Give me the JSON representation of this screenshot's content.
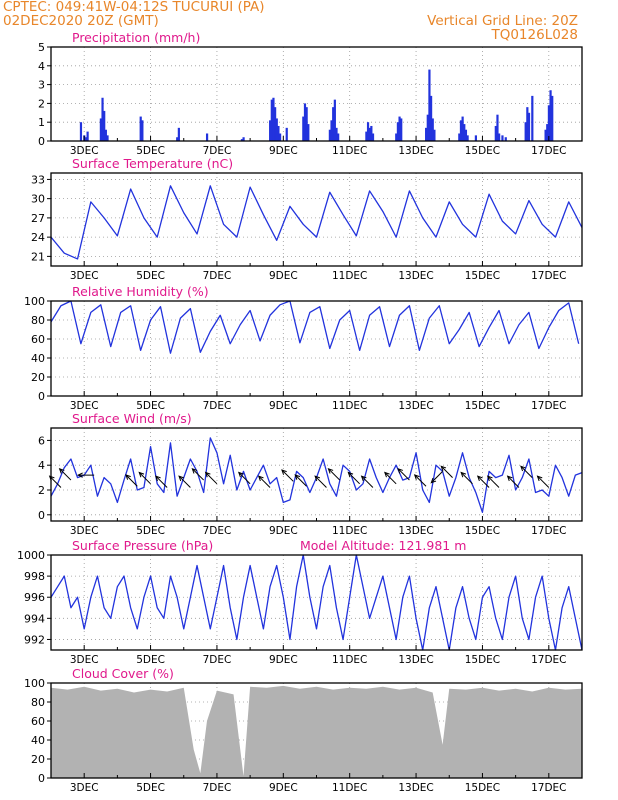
{
  "header": {
    "line1": "CPTEC:    049:41W-04:12S   TUCURUI (PA)",
    "line2": "02DEC2020 20Z (GMT)",
    "grid_note": "Vertical Grid Line: 20Z",
    "run_id": "TQ0126L028"
  },
  "colors": {
    "header": "#e8862a",
    "title": "#e0198c",
    "series": "#2233dd",
    "cloud": "#b2b2b2",
    "arrow": "#000000",
    "grid": "#9a9a9a"
  },
  "x_axis": {
    "days": [
      "3DEC",
      "5DEC",
      "7DEC",
      "9DEC",
      "11DEC",
      "13DEC",
      "15DEC",
      "17DEC"
    ]
  },
  "chart_data": [
    {
      "type": "bar",
      "title": "Precipitation (mm/h)",
      "ylim": [
        0,
        5
      ],
      "yticks": [
        "0",
        "1",
        "2",
        "3",
        "4",
        "5"
      ],
      "x_unit": "day of December 2020",
      "x": [
        2.9,
        3.0,
        3.05,
        3.1,
        3.5,
        3.55,
        3.6,
        3.65,
        3.7,
        4.7,
        4.75,
        5.8,
        5.85,
        6.7,
        7.75,
        7.8,
        8.6,
        8.65,
        8.7,
        8.75,
        8.8,
        8.85,
        8.9,
        9.1,
        9.6,
        9.65,
        9.7,
        9.75,
        10.4,
        10.45,
        10.5,
        10.55,
        10.6,
        10.65,
        11.5,
        11.55,
        11.6,
        11.65,
        11.7,
        12.4,
        12.45,
        12.5,
        12.55,
        13.3,
        13.35,
        13.4,
        13.45,
        13.5,
        13.55,
        14.3,
        14.35,
        14.4,
        14.45,
        14.5,
        14.55,
        14.8,
        15.4,
        15.45,
        15.5,
        15.6,
        15.7,
        16.3,
        16.35,
        16.4,
        16.5,
        16.9,
        16.95,
        17.0,
        17.05,
        17.1
      ],
      "values": [
        1.0,
        0.3,
        0.2,
        0.5,
        1.2,
        2.3,
        1.6,
        0.6,
        0.3,
        1.3,
        1.1,
        0.2,
        0.7,
        0.4,
        0.1,
        0.2,
        1.1,
        2.2,
        2.3,
        1.8,
        1.2,
        0.8,
        0.4,
        0.7,
        1.3,
        2.0,
        1.8,
        0.9,
        0.6,
        1.1,
        1.8,
        2.2,
        0.7,
        0.4,
        0.5,
        1.0,
        0.7,
        0.8,
        0.4,
        0.4,
        1.0,
        1.3,
        1.2,
        0.7,
        1.4,
        3.8,
        2.4,
        1.2,
        0.6,
        0.4,
        1.1,
        1.3,
        0.9,
        0.6,
        0.3,
        0.3,
        0.8,
        1.4,
        0.4,
        0.3,
        0.2,
        1.0,
        1.8,
        1.5,
        2.4,
        0.6,
        0.9,
        1.9,
        2.7,
        2.4
      ]
    },
    {
      "type": "line",
      "title": "Surface Temperature (nC)",
      "ylim": [
        19.5,
        34
      ],
      "yticks": [
        "21",
        "24",
        "27",
        "30",
        "33"
      ],
      "series": [
        {
          "x": [
            2.0,
            2.4,
            2.8,
            3.2,
            3.6,
            4.0,
            4.4,
            4.8,
            5.2,
            5.6,
            6.0,
            6.4,
            6.8,
            7.2,
            7.6,
            8.0,
            8.4,
            8.8,
            9.2,
            9.6,
            10.0,
            10.4,
            10.8,
            11.2,
            11.6,
            12.0,
            12.4,
            12.8,
            13.2,
            13.6,
            14.0,
            14.4,
            14.8,
            15.2,
            15.6,
            16.0,
            16.4,
            16.8,
            17.2,
            17.6,
            18.0
          ],
          "values": [
            24.0,
            21.5,
            20.6,
            29.5,
            27.0,
            24.2,
            31.5,
            27.0,
            24.0,
            32.0,
            27.8,
            24.5,
            32.0,
            26.0,
            24.0,
            31.8,
            27.5,
            23.5,
            28.8,
            26.0,
            24.0,
            31.0,
            27.5,
            24.2,
            31.2,
            28.0,
            24.0,
            31.2,
            27.0,
            24.0,
            29.5,
            26.0,
            24.0,
            30.7,
            26.5,
            24.5,
            29.7,
            26.0,
            24.0,
            29.5,
            25.5
          ]
        }
      ]
    },
    {
      "type": "line",
      "title": "Relative Humidity (%)",
      "ylim": [
        0,
        100
      ],
      "yticks": [
        "0",
        "20",
        "40",
        "60",
        "80",
        "100"
      ],
      "series": [
        {
          "x": [
            2.0,
            2.3,
            2.6,
            2.9,
            3.2,
            3.5,
            3.8,
            4.1,
            4.4,
            4.7,
            5.0,
            5.3,
            5.6,
            5.9,
            6.2,
            6.5,
            6.8,
            7.1,
            7.4,
            7.7,
            8.0,
            8.3,
            8.6,
            8.9,
            9.2,
            9.5,
            9.8,
            10.1,
            10.4,
            10.7,
            11.0,
            11.3,
            11.6,
            11.9,
            12.2,
            12.5,
            12.8,
            13.1,
            13.4,
            13.7,
            14.0,
            14.3,
            14.6,
            14.9,
            15.2,
            15.5,
            15.8,
            16.1,
            16.4,
            16.7,
            17.0,
            17.3,
            17.6,
            17.9
          ],
          "values": [
            78,
            95,
            100,
            55,
            88,
            96,
            52,
            88,
            95,
            48,
            80,
            94,
            45,
            82,
            92,
            46,
            68,
            85,
            55,
            75,
            90,
            58,
            85,
            96,
            100,
            56,
            88,
            94,
            50,
            80,
            90,
            48,
            85,
            94,
            52,
            85,
            95,
            48,
            82,
            95,
            55,
            70,
            88,
            52,
            72,
            90,
            55,
            75,
            88,
            50,
            72,
            90,
            98,
            55
          ]
        }
      ]
    },
    {
      "type": "line",
      "title": "Surface Wind (m/s)",
      "ylim": [
        -0.5,
        7
      ],
      "yticks": [
        "0",
        "2",
        "4",
        "6"
      ],
      "series": [
        {
          "x": [
            2.0,
            2.2,
            2.4,
            2.6,
            2.8,
            3.0,
            3.2,
            3.4,
            3.6,
            3.8,
            4.0,
            4.2,
            4.4,
            4.6,
            4.8,
            5.0,
            5.2,
            5.4,
            5.6,
            5.8,
            6.0,
            6.2,
            6.4,
            6.6,
            6.8,
            7.0,
            7.2,
            7.4,
            7.6,
            7.8,
            8.0,
            8.2,
            8.4,
            8.6,
            8.8,
            9.0,
            9.2,
            9.4,
            9.6,
            9.8,
            10.0,
            10.2,
            10.4,
            10.6,
            10.8,
            11.0,
            11.2,
            11.4,
            11.6,
            11.8,
            12.0,
            12.2,
            12.4,
            12.6,
            12.8,
            13.0,
            13.2,
            13.4,
            13.6,
            13.8,
            14.0,
            14.2,
            14.4,
            14.6,
            14.8,
            15.0,
            15.2,
            15.4,
            15.6,
            15.8,
            16.0,
            16.2,
            16.4,
            16.6,
            16.8,
            17.0,
            17.2,
            17.4,
            17.6,
            17.8,
            18.0
          ],
          "values": [
            1.5,
            2.5,
            3.8,
            4.5,
            3.0,
            3.2,
            4.0,
            1.5,
            3.0,
            2.5,
            1.0,
            2.8,
            4.5,
            2.0,
            2.2,
            5.5,
            2.5,
            1.8,
            5.8,
            1.5,
            3.0,
            4.5,
            3.5,
            1.8,
            6.2,
            5.0,
            2.5,
            4.8,
            2.0,
            3.5,
            2.0,
            3.0,
            4.0,
            2.5,
            3.0,
            1.0,
            1.2,
            3.5,
            3.0,
            1.8,
            3.0,
            4.5,
            2.5,
            1.5,
            4.0,
            3.5,
            2.0,
            2.5,
            4.5,
            3.0,
            1.8,
            3.0,
            4.0,
            2.8,
            3.0,
            5.0,
            2.0,
            1.0,
            4.0,
            3.5,
            1.5,
            3.0,
            5.0,
            3.0,
            1.8,
            0.2,
            3.5,
            3.0,
            3.2,
            4.8,
            2.0,
            3.0,
            4.5,
            1.8,
            2.0,
            1.5,
            4.0,
            3.0,
            1.5,
            3.2,
            3.4
          ]
        }
      ]
    },
    {
      "type": "line",
      "title": "Surface Pressure (hPa)",
      "subtitle": "Model Altitude: 121.981 m",
      "ylim": [
        991,
        1000
      ],
      "yticks": [
        "992",
        "994",
        "996",
        "998",
        "1000"
      ],
      "series": [
        {
          "x": [
            2.0,
            2.2,
            2.4,
            2.6,
            2.8,
            3.0,
            3.2,
            3.4,
            3.6,
            3.8,
            4.0,
            4.2,
            4.4,
            4.6,
            4.8,
            5.0,
            5.2,
            5.4,
            5.6,
            5.8,
            6.0,
            6.2,
            6.4,
            6.6,
            6.8,
            7.0,
            7.2,
            7.4,
            7.6,
            7.8,
            8.0,
            8.2,
            8.4,
            8.6,
            8.8,
            9.0,
            9.2,
            9.4,
            9.6,
            9.8,
            10.0,
            10.2,
            10.4,
            10.6,
            10.8,
            11.0,
            11.2,
            11.4,
            11.6,
            11.8,
            12.0,
            12.2,
            12.4,
            12.6,
            12.8,
            13.0,
            13.2,
            13.4,
            13.6,
            13.8,
            14.0,
            14.2,
            14.4,
            14.6,
            14.8,
            15.0,
            15.2,
            15.4,
            15.6,
            15.8,
            16.0,
            16.2,
            16.4,
            16.6,
            16.8,
            17.0,
            17.2,
            17.4,
            17.6,
            17.8,
            18.0
          ],
          "values": [
            996,
            997,
            998,
            995,
            996,
            993,
            996,
            998,
            995,
            994,
            997,
            998,
            995,
            993,
            996,
            998,
            995,
            994,
            998,
            996,
            993,
            996,
            999,
            996,
            993,
            996,
            999,
            995,
            992,
            996,
            999,
            996,
            993,
            997,
            999,
            996,
            992,
            997,
            1000,
            996,
            993,
            997,
            999,
            995,
            992,
            996,
            1000,
            997,
            994,
            996,
            998,
            995,
            992,
            996,
            998,
            994,
            991,
            995,
            997,
            994,
            991,
            995,
            997,
            994,
            992,
            996,
            997,
            994,
            992,
            996,
            998,
            994,
            992,
            996,
            998,
            994,
            991,
            995,
            997,
            994,
            991
          ]
        }
      ]
    },
    {
      "type": "area",
      "title": "Cloud Cover (%)",
      "ylim": [
        0,
        100
      ],
      "yticks": [
        "0",
        "20",
        "40",
        "60",
        "80",
        "100"
      ],
      "series": [
        {
          "x": [
            2.0,
            2.5,
            3.0,
            3.5,
            4.0,
            4.5,
            5.0,
            5.5,
            6.0,
            6.3,
            6.5,
            6.7,
            7.0,
            7.5,
            7.8,
            8.0,
            8.5,
            9.0,
            9.5,
            10.0,
            10.5,
            11.0,
            11.5,
            12.0,
            12.5,
            13.0,
            13.5,
            13.8,
            14.0,
            14.5,
            15.0,
            15.5,
            16.0,
            16.5,
            17.0,
            17.5,
            18.0
          ],
          "values": [
            95,
            93,
            96,
            92,
            94,
            90,
            93,
            91,
            95,
            30,
            5,
            60,
            92,
            88,
            2,
            96,
            95,
            97,
            94,
            96,
            93,
            95,
            94,
            96,
            93,
            95,
            90,
            35,
            94,
            93,
            95,
            92,
            94,
            91,
            95,
            93,
            94
          ]
        }
      ]
    },
    {
      "type": "scatter",
      "title": "Surface Wind direction arrows",
      "x": [
        2.3,
        2.6,
        3.3,
        4.6,
        5.0,
        5.5,
        6.2,
        6.6,
        7.0,
        8.0,
        8.6,
        9.3,
        9.7,
        10.3,
        10.7,
        11.3,
        11.7,
        12.4,
        12.8,
        13.3,
        13.8,
        14.1,
        14.7,
        15.2,
        15.5,
        16.1,
        16.5,
        17.0
      ],
      "values": [
        2.2,
        2.8,
        3.2,
        2.3,
        2.5,
        2.2,
        2.2,
        2.8,
        2.5,
        2.5,
        2.2,
        2.7,
        2.3,
        2.2,
        2.8,
        2.5,
        2.2,
        2.5,
        2.8,
        2.3,
        3.5,
        3.0,
        2.5,
        2.2,
        2.2,
        2.2,
        3.0,
        2.2
      ],
      "angle": [
        225,
        225,
        180,
        225,
        225,
        225,
        225,
        225,
        225,
        225,
        225,
        225,
        225,
        225,
        225,
        225,
        225,
        225,
        225,
        225,
        135,
        225,
        225,
        225,
        225,
        225,
        225,
        225
      ]
    }
  ]
}
